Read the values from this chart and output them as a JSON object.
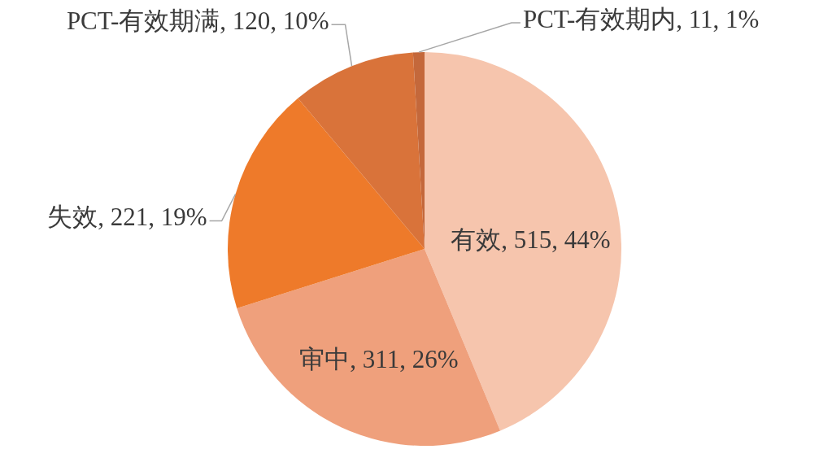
{
  "chart_data": {
    "type": "pie",
    "categories": [
      "有效",
      "审中",
      "失效",
      "PCT-有效期满",
      "PCT-有效期内"
    ],
    "values": [
      515,
      311,
      221,
      120,
      11
    ],
    "colors": [
      "#f6c5ad",
      "#efa07c",
      "#ee7a2a",
      "#d9733a",
      "#c4683b"
    ],
    "value_labels": [
      "515, 44%",
      "311, 26%",
      "221, 19%",
      "120, 10%",
      "11, 1%"
    ]
  }
}
